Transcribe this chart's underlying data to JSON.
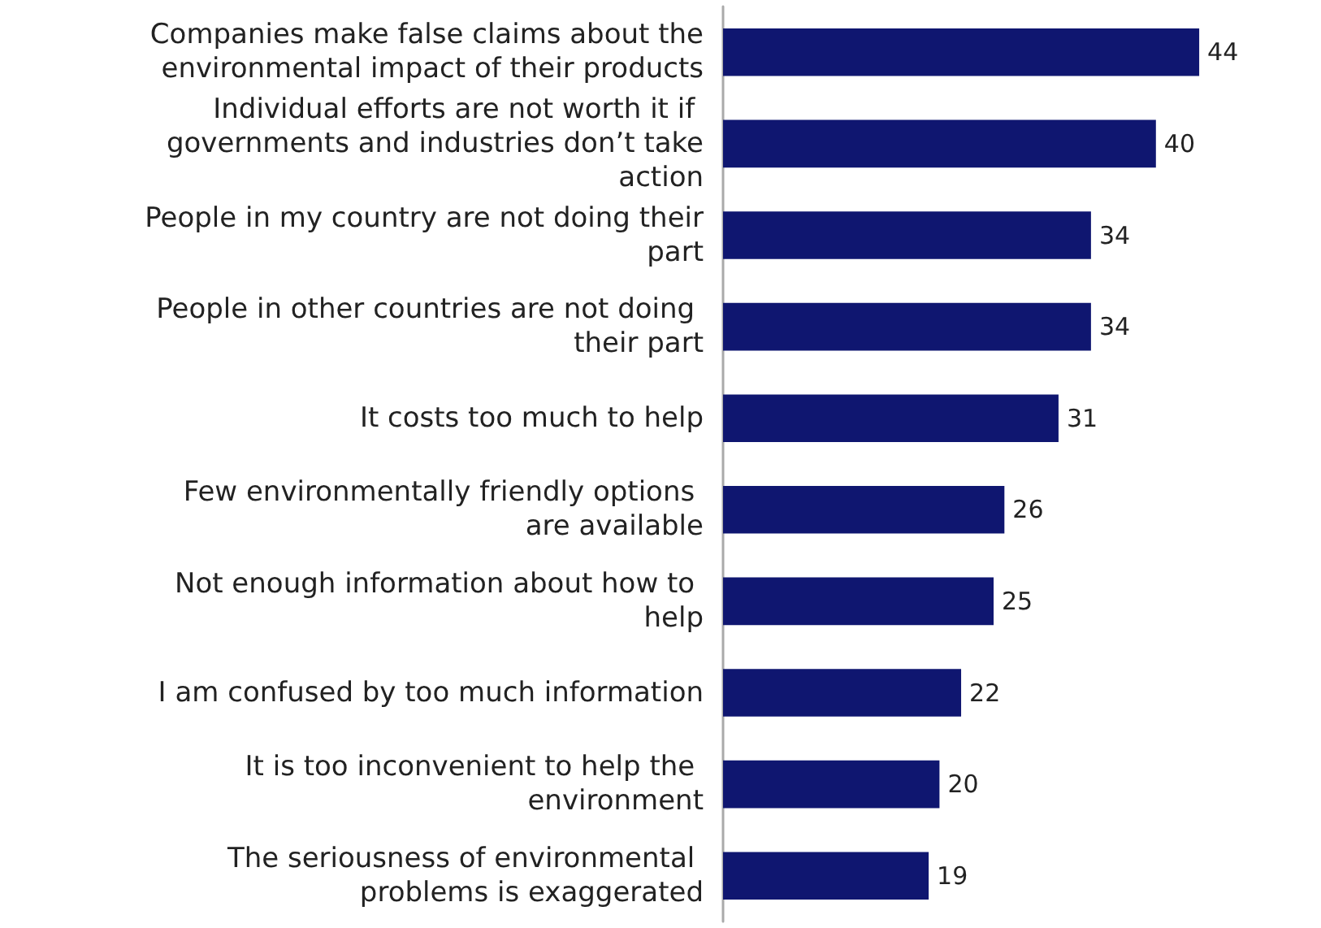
{
  "chart_data": {
    "type": "bar",
    "orientation": "horizontal",
    "data_labels": true,
    "color": "#0f1670",
    "categories": [
      "Companies make false claims about the environmental impact of their products",
      "Individual efforts are not worth it if governments and industries don’t take action",
      "People in my country are not doing their part",
      "People in other countries are not doing their part",
      "It costs too much to help",
      "Few environmentally friendly options are available",
      "Not enough information about how to help",
      "I am confused by too much information",
      "It is too inconvenient to help the environment",
      "The seriousness of environmental problems is exaggerated"
    ],
    "values": [
      44,
      40,
      34,
      34,
      31,
      26,
      25,
      22,
      20,
      19
    ]
  }
}
